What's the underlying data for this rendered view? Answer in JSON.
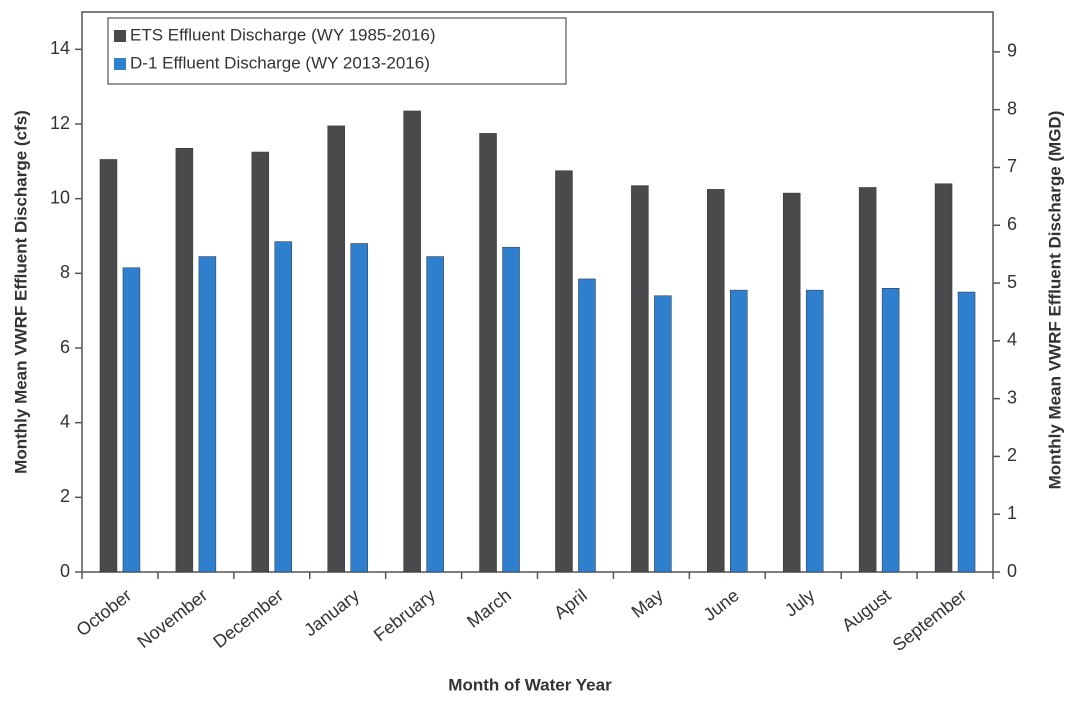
{
  "chart_data": {
    "type": "bar",
    "x_label": "Month of Water Year",
    "y_label": "Monthly Mean VWRF Effluent Discharge (cfs)",
    "y2_label": "Monthly Mean VWRF Effluent Discharge (MGD)",
    "categories": [
      "October",
      "November",
      "December",
      "January",
      "February",
      "March",
      "April",
      "May",
      "June",
      "July",
      "August",
      "September"
    ],
    "series": [
      {
        "name": "ETS Effluent Discharge (WY 1985-2016)",
        "color": "#4a4a4c",
        "values": [
          11.05,
          11.35,
          11.25,
          11.95,
          12.35,
          11.75,
          10.75,
          10.35,
          10.25,
          10.15,
          10.3,
          10.4
        ]
      },
      {
        "name": "D-1 Effluent Discharge (WY 2013-2016)",
        "color": "#2f7fcf",
        "values": [
          8.15,
          8.45,
          8.85,
          8.8,
          8.45,
          8.7,
          7.85,
          7.4,
          7.55,
          7.55,
          7.6,
          7.5
        ]
      }
    ],
    "ylim": [
      0,
      15
    ],
    "yticks": [
      0,
      2,
      4,
      6,
      8,
      10,
      12,
      14
    ],
    "y2lim": [
      0,
      9.69
    ],
    "y2ticks": [
      0,
      1,
      2,
      3,
      4,
      5,
      6,
      7,
      8,
      9
    ],
    "legend": "top-left",
    "grid": false
  }
}
